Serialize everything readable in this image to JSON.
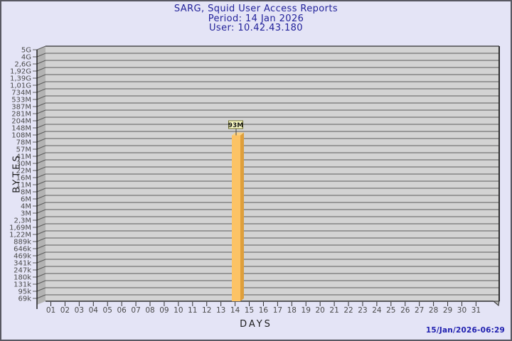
{
  "footer": {
    "generated": "15/Jan/2026-06:29"
  },
  "chart_data": {
    "type": "bar",
    "style": "3d-bar",
    "title": "SARG, Squid User Access Reports",
    "period_line": "Period: 14 Jan 2026",
    "user_line": "User: 10.42.43.180",
    "xlabel": "DAYS",
    "ylabel": "BYTES",
    "y_axis_scale": "logarithmic",
    "grid": "horizontal",
    "legend_position": "none",
    "x_tick_labels": [
      "01",
      "02",
      "03",
      "04",
      "05",
      "06",
      "07",
      "08",
      "09",
      "10",
      "11",
      "12",
      "13",
      "14",
      "15",
      "16",
      "17",
      "18",
      "19",
      "20",
      "21",
      "22",
      "23",
      "24",
      "25",
      "26",
      "27",
      "28",
      "29",
      "30",
      "31"
    ],
    "y_tick_labels": [
      "5G",
      "4G",
      "2,6G",
      "1,92G",
      "1,39G",
      "1,01G",
      "734M",
      "533M",
      "387M",
      "281M",
      "204M",
      "148M",
      "108M",
      "78M",
      "57M",
      "41M",
      "30M",
      "22M",
      "16M",
      "11M",
      "8M",
      "6M",
      "4M",
      "3M",
      "2,3M",
      "1,69M",
      "1,22M",
      "889k",
      "646k",
      "469k",
      "341k",
      "247k",
      "180k",
      "131k",
      "95k",
      "69k"
    ],
    "bars": [
      {
        "day": "14",
        "value_label": "93M"
      }
    ],
    "colors": {
      "page_bg": "#E4E4F6",
      "frame_border": "#585862",
      "title_text": "#22229A",
      "axis_title_text": "#1C1C1C",
      "axis_tick_text": "#4A4A4A",
      "timestamp_text": "#2121B0",
      "plot_bg": "#D3D3D3",
      "wall_bg": "#B3B3B3",
      "grid_line": "#5C5C5C",
      "border_line": "#2E2E2E",
      "bar_front": "#FCC365",
      "bar_side": "#DE9F3C",
      "bar_top": "#F9D185",
      "callout_bg": "#FFFFC9",
      "callout_border": "#6B6B2A",
      "callout_text": "#111111"
    }
  }
}
